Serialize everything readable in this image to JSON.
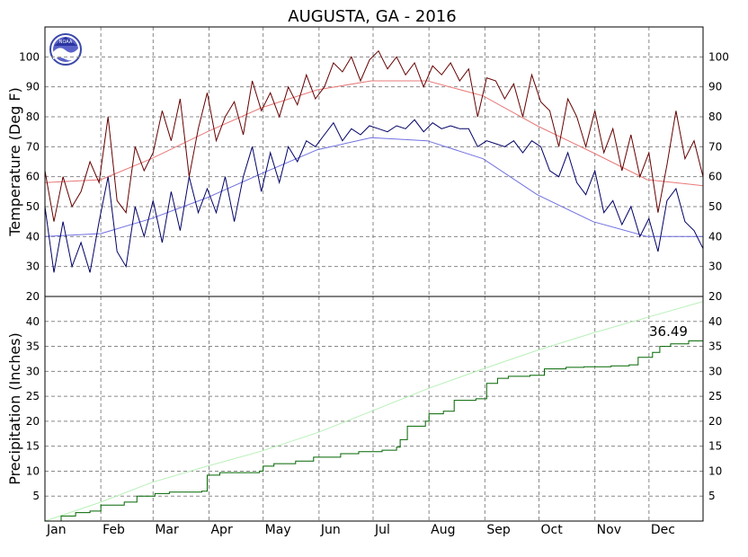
{
  "chart_data": {
    "type": "line",
    "title": "AUGUSTA, GA - 2016",
    "logo_text": "NOAA",
    "months": [
      "Jan",
      "Feb",
      "Mar",
      "Apr",
      "May",
      "Jun",
      "Jul",
      "Aug",
      "Sep",
      "Oct",
      "Nov",
      "Dec"
    ],
    "temperature": {
      "ylabel": "Temperature (Deg F)",
      "ylim": [
        20,
        110
      ],
      "ticks": [
        30,
        40,
        50,
        60,
        70,
        80,
        90,
        100
      ],
      "lower_label": "20",
      "grid": true,
      "series": [
        {
          "key": "normal_high",
          "color": "#e87878",
          "points": [
            [
              1,
              58
            ],
            [
              32,
              59
            ],
            [
              60,
              66
            ],
            [
              91,
              75
            ],
            [
              121,
              83
            ],
            [
              152,
              89
            ],
            [
              182,
              92
            ],
            [
              213,
              92
            ],
            [
              244,
              87
            ],
            [
              274,
              77
            ],
            [
              305,
              68
            ],
            [
              335,
              59
            ],
            [
              366,
              57
            ]
          ]
        },
        {
          "key": "normal_low",
          "color": "#7070e0",
          "points": [
            [
              1,
              40
            ],
            [
              32,
              41
            ],
            [
              60,
              46
            ],
            [
              91,
              53
            ],
            [
              121,
              61
            ],
            [
              152,
              69
            ],
            [
              182,
              73
            ],
            [
              213,
              72
            ],
            [
              244,
              66
            ],
            [
              274,
              54
            ],
            [
              305,
              45
            ],
            [
              335,
              40
            ],
            [
              366,
              40
            ]
          ]
        },
        {
          "key": "daily_high",
          "color": "#660000",
          "points": [
            [
              1,
              62
            ],
            [
              6,
              45
            ],
            [
              11,
              60
            ],
            [
              16,
              50
            ],
            [
              21,
              55
            ],
            [
              26,
              65
            ],
            [
              31,
              58
            ],
            [
              36,
              80
            ],
            [
              41,
              52
            ],
            [
              46,
              48
            ],
            [
              51,
              70
            ],
            [
              56,
              62
            ],
            [
              61,
              68
            ],
            [
              66,
              82
            ],
            [
              71,
              72
            ],
            [
              76,
              86
            ],
            [
              81,
              60
            ],
            [
              86,
              76
            ],
            [
              91,
              88
            ],
            [
              96,
              72
            ],
            [
              101,
              80
            ],
            [
              106,
              85
            ],
            [
              111,
              74
            ],
            [
              116,
              92
            ],
            [
              121,
              82
            ],
            [
              126,
              88
            ],
            [
              131,
              80
            ],
            [
              136,
              90
            ],
            [
              141,
              84
            ],
            [
              146,
              94
            ],
            [
              151,
              86
            ],
            [
              156,
              90
            ],
            [
              161,
              98
            ],
            [
              166,
              95
            ],
            [
              171,
              100
            ],
            [
              176,
              92
            ],
            [
              181,
              99
            ],
            [
              186,
              102
            ],
            [
              191,
              96
            ],
            [
              196,
              100
            ],
            [
              201,
              94
            ],
            [
              206,
              98
            ],
            [
              211,
              90
            ],
            [
              216,
              97
            ],
            [
              221,
              94
            ],
            [
              226,
              98
            ],
            [
              231,
              92
            ],
            [
              236,
              96
            ],
            [
              241,
              80
            ],
            [
              246,
              93
            ],
            [
              251,
              92
            ],
            [
              256,
              86
            ],
            [
              261,
              91
            ],
            [
              266,
              80
            ],
            [
              271,
              94
            ],
            [
              276,
              85
            ],
            [
              281,
              82
            ],
            [
              286,
              70
            ],
            [
              291,
              86
            ],
            [
              296,
              80
            ],
            [
              301,
              70
            ],
            [
              306,
              82
            ],
            [
              311,
              68
            ],
            [
              316,
              76
            ],
            [
              321,
              62
            ],
            [
              326,
              74
            ],
            [
              331,
              60
            ],
            [
              336,
              68
            ],
            [
              341,
              48
            ],
            [
              346,
              64
            ],
            [
              351,
              82
            ],
            [
              356,
              66
            ],
            [
              361,
              72
            ],
            [
              366,
              60
            ]
          ]
        },
        {
          "key": "daily_low",
          "color": "#000066",
          "points": [
            [
              1,
              50
            ],
            [
              6,
              28
            ],
            [
              11,
              45
            ],
            [
              16,
              30
            ],
            [
              21,
              38
            ],
            [
              26,
              28
            ],
            [
              31,
              45
            ],
            [
              36,
              60
            ],
            [
              41,
              35
            ],
            [
              46,
              30
            ],
            [
              51,
              50
            ],
            [
              56,
              40
            ],
            [
              61,
              52
            ],
            [
              66,
              38
            ],
            [
              71,
              55
            ],
            [
              76,
              42
            ],
            [
              81,
              60
            ],
            [
              86,
              48
            ],
            [
              91,
              56
            ],
            [
              96,
              48
            ],
            [
              101,
              60
            ],
            [
              106,
              45
            ],
            [
              111,
              60
            ],
            [
              116,
              70
            ],
            [
              121,
              55
            ],
            [
              126,
              68
            ],
            [
              131,
              58
            ],
            [
              136,
              70
            ],
            [
              141,
              65
            ],
            [
              146,
              72
            ],
            [
              151,
              70
            ],
            [
              156,
              74
            ],
            [
              161,
              78
            ],
            [
              166,
              72
            ],
            [
              171,
              76
            ],
            [
              176,
              74
            ],
            [
              181,
              77
            ],
            [
              186,
              76
            ],
            [
              191,
              75
            ],
            [
              196,
              77
            ],
            [
              201,
              76
            ],
            [
              206,
              79
            ],
            [
              211,
              75
            ],
            [
              216,
              78
            ],
            [
              221,
              76
            ],
            [
              226,
              77
            ],
            [
              231,
              76
            ],
            [
              236,
              76
            ],
            [
              241,
              70
            ],
            [
              246,
              72
            ],
            [
              251,
              71
            ],
            [
              256,
              70
            ],
            [
              261,
              72
            ],
            [
              266,
              68
            ],
            [
              271,
              72
            ],
            [
              276,
              70
            ],
            [
              281,
              62
            ],
            [
              286,
              60
            ],
            [
              291,
              68
            ],
            [
              296,
              58
            ],
            [
              301,
              54
            ],
            [
              306,
              62
            ],
            [
              311,
              48
            ],
            [
              316,
              52
            ],
            [
              321,
              44
            ],
            [
              326,
              50
            ],
            [
              331,
              40
            ],
            [
              336,
              46
            ],
            [
              341,
              35
            ],
            [
              346,
              52
            ],
            [
              351,
              56
            ],
            [
              356,
              45
            ],
            [
              361,
              42
            ],
            [
              366,
              36
            ]
          ]
        }
      ]
    },
    "precipitation": {
      "ylabel": "Precipitation (Inches)",
      "ylim": [
        0,
        45
      ],
      "ticks": [
        5,
        10,
        15,
        20,
        25,
        30,
        35,
        40
      ],
      "grid": true,
      "annotation": "36.49",
      "series": [
        {
          "key": "normal_cumulative",
          "color": "#b8f0b8",
          "points": [
            [
              1,
              0
            ],
            [
              32,
              3.8
            ],
            [
              60,
              7.7
            ],
            [
              91,
              11
            ],
            [
              121,
              14
            ],
            [
              152,
              17.7
            ],
            [
              182,
              22
            ],
            [
              213,
              26.5
            ],
            [
              244,
              30.5
            ],
            [
              274,
              34.2
            ],
            [
              305,
              37.7
            ],
            [
              335,
              40.8
            ],
            [
              366,
              44
            ]
          ]
        },
        {
          "key": "actual_cumulative",
          "color": "#006600",
          "points": [
            [
              1,
              0
            ],
            [
              10,
              1
            ],
            [
              18,
              1.7
            ],
            [
              26,
              2
            ],
            [
              32,
              3.2
            ],
            [
              45,
              3.8
            ],
            [
              52,
              5
            ],
            [
              62,
              5.5
            ],
            [
              70,
              5.8
            ],
            [
              88,
              6
            ],
            [
              91,
              9.2
            ],
            [
              98,
              9.7
            ],
            [
              120,
              10
            ],
            [
              122,
              11
            ],
            [
              128,
              11.5
            ],
            [
              140,
              12
            ],
            [
              150,
              12.8
            ],
            [
              165,
              13.5
            ],
            [
              175,
              13.9
            ],
            [
              188,
              14.2
            ],
            [
              196,
              14.8
            ],
            [
              198,
              16.3
            ],
            [
              202,
              19
            ],
            [
              212,
              20
            ],
            [
              214,
              21.5
            ],
            [
              222,
              22
            ],
            [
              228,
              24.2
            ],
            [
              240,
              24.5
            ],
            [
              246,
              27.6
            ],
            [
              252,
              28.6
            ],
            [
              258,
              29
            ],
            [
              270,
              29.2
            ],
            [
              278,
              30.5
            ],
            [
              290,
              30.8
            ],
            [
              300,
              30.9
            ],
            [
              315,
              31.1
            ],
            [
              325,
              31.3
            ],
            [
              330,
              32.8
            ],
            [
              338,
              33.8
            ],
            [
              342,
              35
            ],
            [
              348,
              35.5
            ],
            [
              358,
              36.1
            ],
            [
              366,
              36.49
            ]
          ]
        }
      ]
    }
  }
}
